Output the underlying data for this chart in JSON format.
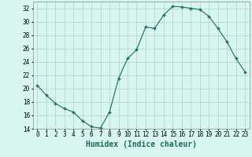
{
  "x": [
    0,
    1,
    2,
    3,
    4,
    5,
    6,
    7,
    8,
    9,
    10,
    11,
    12,
    13,
    14,
    15,
    16,
    17,
    18,
    19,
    20,
    21,
    22,
    23
  ],
  "y": [
    20.5,
    19.0,
    17.8,
    17.0,
    16.5,
    15.2,
    14.3,
    14.1,
    16.5,
    21.5,
    24.5,
    25.8,
    29.2,
    29.0,
    31.0,
    32.3,
    32.2,
    32.0,
    31.8,
    30.8,
    29.0,
    27.0,
    24.5,
    22.5
  ],
  "line_color": "#1a6b5a",
  "marker": "+",
  "marker_size": 3.5,
  "marker_linewidth": 1.0,
  "line_width": 0.8,
  "bg_color": "#d8f5ef",
  "grid_color": "#b0d8d0",
  "xlabel": "Humidex (Indice chaleur)",
  "ylim": [
    14,
    33
  ],
  "xlim": [
    -0.5,
    23.5
  ],
  "yticks": [
    14,
    16,
    18,
    20,
    22,
    24,
    26,
    28,
    30,
    32
  ],
  "xtick_labels": [
    "0",
    "1",
    "2",
    "3",
    "4",
    "5",
    "6",
    "7",
    "8",
    "9",
    "10",
    "11",
    "12",
    "13",
    "14",
    "15",
    "16",
    "17",
    "18",
    "19",
    "20",
    "21",
    "22",
    "23"
  ],
  "tick_fontsize": 5.5,
  "xlabel_fontsize": 7.0,
  "xlabel_color": "#1a6b5a"
}
